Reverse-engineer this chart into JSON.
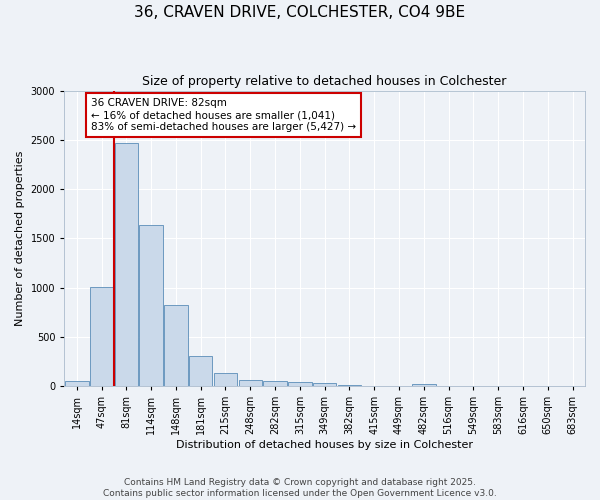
{
  "title": "36, CRAVEN DRIVE, COLCHESTER, CO4 9BE",
  "subtitle": "Size of property relative to detached houses in Colchester",
  "xlabel": "Distribution of detached houses by size in Colchester",
  "ylabel": "Number of detached properties",
  "categories": [
    "14sqm",
    "47sqm",
    "81sqm",
    "114sqm",
    "148sqm",
    "181sqm",
    "215sqm",
    "248sqm",
    "282sqm",
    "315sqm",
    "349sqm",
    "382sqm",
    "415sqm",
    "449sqm",
    "482sqm",
    "516sqm",
    "549sqm",
    "583sqm",
    "616sqm",
    "650sqm",
    "683sqm"
  ],
  "values": [
    55,
    1005,
    2470,
    1640,
    820,
    305,
    135,
    60,
    55,
    45,
    30,
    15,
    5,
    0,
    20,
    0,
    0,
    0,
    0,
    0,
    0
  ],
  "bar_color": "#cad9ea",
  "bar_edge_color": "#5b8db8",
  "vline_x_index": 1.5,
  "vline_color": "#cc0000",
  "annotation_text": "36 CRAVEN DRIVE: 82sqm\n← 16% of detached houses are smaller (1,041)\n83% of semi-detached houses are larger (5,427) →",
  "annotation_box_color": "#cc0000",
  "ylim": [
    0,
    3000
  ],
  "yticks": [
    0,
    500,
    1000,
    1500,
    2000,
    2500,
    3000
  ],
  "footer_line1": "Contains HM Land Registry data © Crown copyright and database right 2025.",
  "footer_line2": "Contains public sector information licensed under the Open Government Licence v3.0.",
  "bg_color": "#eef2f7",
  "grid_color": "#ffffff",
  "title_fontsize": 11,
  "subtitle_fontsize": 9,
  "label_fontsize": 8,
  "tick_fontsize": 7,
  "footer_fontsize": 6.5,
  "ann_fontsize": 7.5
}
